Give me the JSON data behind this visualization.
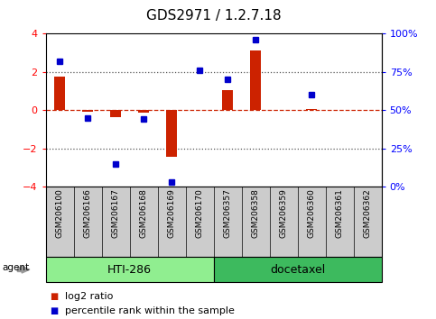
{
  "title": "GDS2971 / 1.2.7.18",
  "samples": [
    "GSM206100",
    "GSM206166",
    "GSM206167",
    "GSM206168",
    "GSM206169",
    "GSM206170",
    "GSM206357",
    "GSM206358",
    "GSM206359",
    "GSM206360",
    "GSM206361",
    "GSM206362"
  ],
  "log2_ratio": [
    1.75,
    -0.1,
    -0.35,
    -0.15,
    -2.45,
    0.0,
    1.05,
    3.1,
    0.0,
    0.05,
    0.0,
    0.0
  ],
  "percentile_rank": [
    82,
    45,
    15,
    44,
    3,
    76,
    70,
    96,
    null,
    60,
    null,
    null
  ],
  "groups": [
    {
      "label": "HTI-286",
      "start": 0,
      "end": 5,
      "color": "#90ee90"
    },
    {
      "label": "docetaxel",
      "start": 6,
      "end": 11,
      "color": "#3dba5e"
    }
  ],
  "ylim": [
    -4,
    4
  ],
  "y2lim": [
    0,
    100
  ],
  "bar_color": "#cc2200",
  "dot_color": "#0000cc",
  "dashed_line_color": "#cc2200",
  "dotted_line_color": "#555555",
  "bg_color": "#ffffff",
  "cell_bg": "#cccccc",
  "title_fontsize": 11,
  "tick_fontsize": 8,
  "label_fontsize": 6.5,
  "legend_fontsize": 8,
  "group_fontsize": 9
}
